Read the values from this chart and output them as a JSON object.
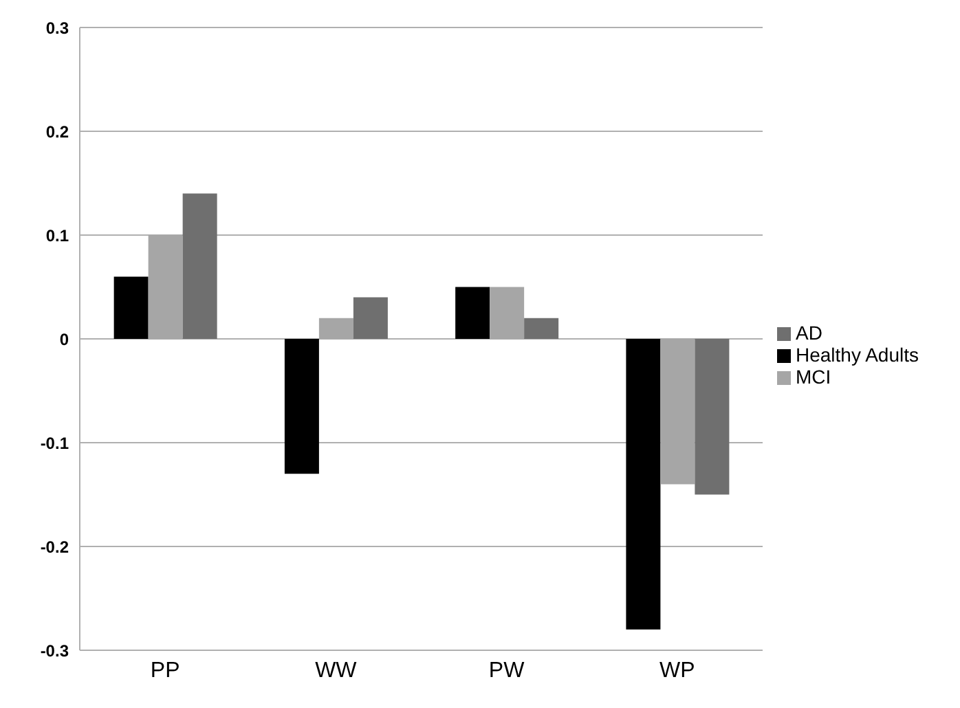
{
  "chart_data": {
    "type": "bar",
    "categories": [
      "PP",
      "WW",
      "PW",
      "WP"
    ],
    "series": [
      {
        "name": "Healthy Adults",
        "color": "#000000",
        "values": [
          0.06,
          -0.13,
          0.05,
          -0.28
        ]
      },
      {
        "name": "MCI",
        "color": "#a6a6a6",
        "values": [
          0.1,
          0.02,
          0.05,
          -0.14
        ]
      },
      {
        "name": "AD",
        "color": "#6f6f6f",
        "values": [
          0.14,
          0.04,
          0.02,
          -0.15
        ]
      }
    ],
    "ylim": [
      -0.3,
      0.3
    ],
    "yticks": [
      -0.3,
      -0.2,
      -0.1,
      0,
      0.1,
      0.2,
      0.3
    ],
    "grid": "y",
    "legend": "right"
  }
}
